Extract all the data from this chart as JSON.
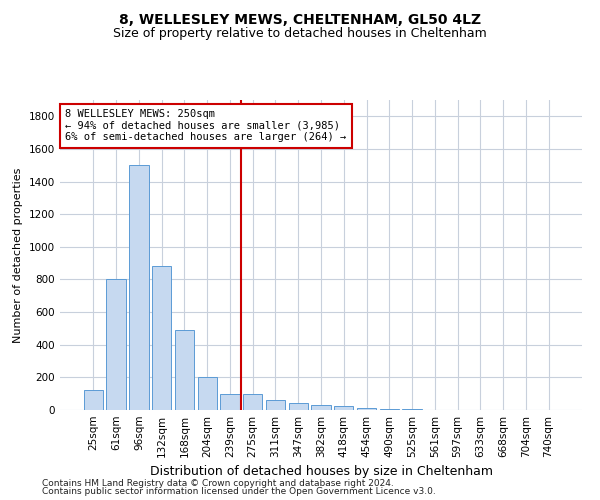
{
  "title1": "8, WELLESLEY MEWS, CHELTENHAM, GL50 4LZ",
  "title2": "Size of property relative to detached houses in Cheltenham",
  "xlabel": "Distribution of detached houses by size in Cheltenham",
  "ylabel": "Number of detached properties",
  "categories": [
    "25sqm",
    "61sqm",
    "96sqm",
    "132sqm",
    "168sqm",
    "204sqm",
    "239sqm",
    "275sqm",
    "311sqm",
    "347sqm",
    "382sqm",
    "418sqm",
    "454sqm",
    "490sqm",
    "525sqm",
    "561sqm",
    "597sqm",
    "633sqm",
    "668sqm",
    "704sqm",
    "740sqm"
  ],
  "values": [
    120,
    800,
    1500,
    880,
    490,
    200,
    100,
    100,
    60,
    40,
    30,
    25,
    15,
    5,
    5,
    3,
    2,
    1,
    1,
    1,
    0
  ],
  "bar_color": "#c6d9f0",
  "bar_edge_color": "#5b9bd5",
  "vline_color": "#cc0000",
  "vline_index": 7,
  "annotation_line1": "8 WELLESLEY MEWS: 250sqm",
  "annotation_line2": "← 94% of detached houses are smaller (3,985)",
  "annotation_line3": "6% of semi-detached houses are larger (264) →",
  "annotation_box_facecolor": "#ffffff",
  "annotation_box_edgecolor": "#cc0000",
  "ylim": [
    0,
    1900
  ],
  "yticks": [
    0,
    200,
    400,
    600,
    800,
    1000,
    1200,
    1400,
    1600,
    1800
  ],
  "footer1": "Contains HM Land Registry data © Crown copyright and database right 2024.",
  "footer2": "Contains public sector information licensed under the Open Government Licence v3.0.",
  "bg_color": "#ffffff",
  "grid_color": "#c8d0dc",
  "title1_fontsize": 10,
  "title2_fontsize": 9,
  "ylabel_fontsize": 8,
  "xlabel_fontsize": 9,
  "tick_fontsize": 7.5,
  "annot_fontsize": 7.5,
  "footer_fontsize": 6.5
}
